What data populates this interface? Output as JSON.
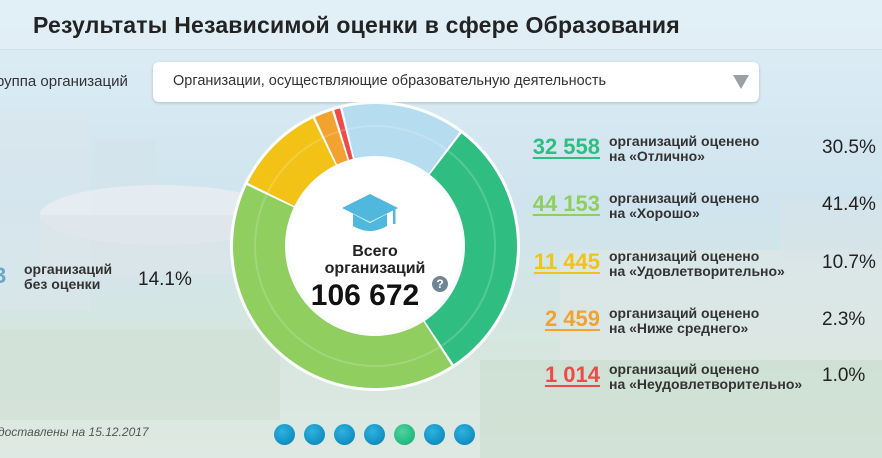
{
  "header": {
    "title": "Результаты Независимой оценки в сфере Образования"
  },
  "filter": {
    "label": "руппа организаций",
    "selected": "Организации, осуществляющие образовательную деятельность"
  },
  "summary": {
    "total_label_line1": "Всего",
    "total_label_line2": "организаций",
    "total_value": "106 672",
    "help_symbol": "?"
  },
  "unrated": {
    "count_fragment": "3",
    "text_line1": "организаций",
    "text_line2": "без оценки",
    "percent": "14.1%",
    "color": "#6aa6c8"
  },
  "legend": [
    {
      "count": "32 558",
      "line1": "организаций оценено",
      "line2": "на «Отлично»",
      "percent": "30.5%",
      "color": "#2fbd82"
    },
    {
      "count": "44 153",
      "line1": "организаций оценено",
      "line2": "на «Хорошо»",
      "percent": "41.4%",
      "color": "#8fce5f"
    },
    {
      "count": "11 445",
      "line1": "организаций оценено",
      "line2": "на «Удовлетворительно»",
      "percent": "10.7%",
      "color": "#f2c217"
    },
    {
      "count": "2 459",
      "line1": "организаций оценено",
      "line2": "на «Ниже среднего»",
      "percent": "2.3%",
      "color": "#f2a22f"
    },
    {
      "count": "1 014",
      "line1": "организаций оценено",
      "line2": "на «Неудовлетворительно»",
      "percent": "1.0%",
      "color": "#ee4a48"
    }
  ],
  "footnote": "доставлены на 15.12.2017",
  "pager": {
    "dots": 7,
    "active_index": 4
  },
  "chart_data": {
    "type": "pie",
    "variant": "donut",
    "total": 106672,
    "categories": [
      "без оценки",
      "Отлично",
      "Хорошо",
      "Удовлетворительно",
      "Ниже среднего",
      "Неудовлетворительно"
    ],
    "values": [
      15043,
      32558,
      44153,
      11445,
      2459,
      1014
    ],
    "percents": [
      14.1,
      30.5,
      41.4,
      10.7,
      2.3,
      1.0
    ],
    "colors": [
      "#b5dcef",
      "#2fbd82",
      "#8fce5f",
      "#f2c217",
      "#f2a22f",
      "#ee4a48"
    ]
  }
}
